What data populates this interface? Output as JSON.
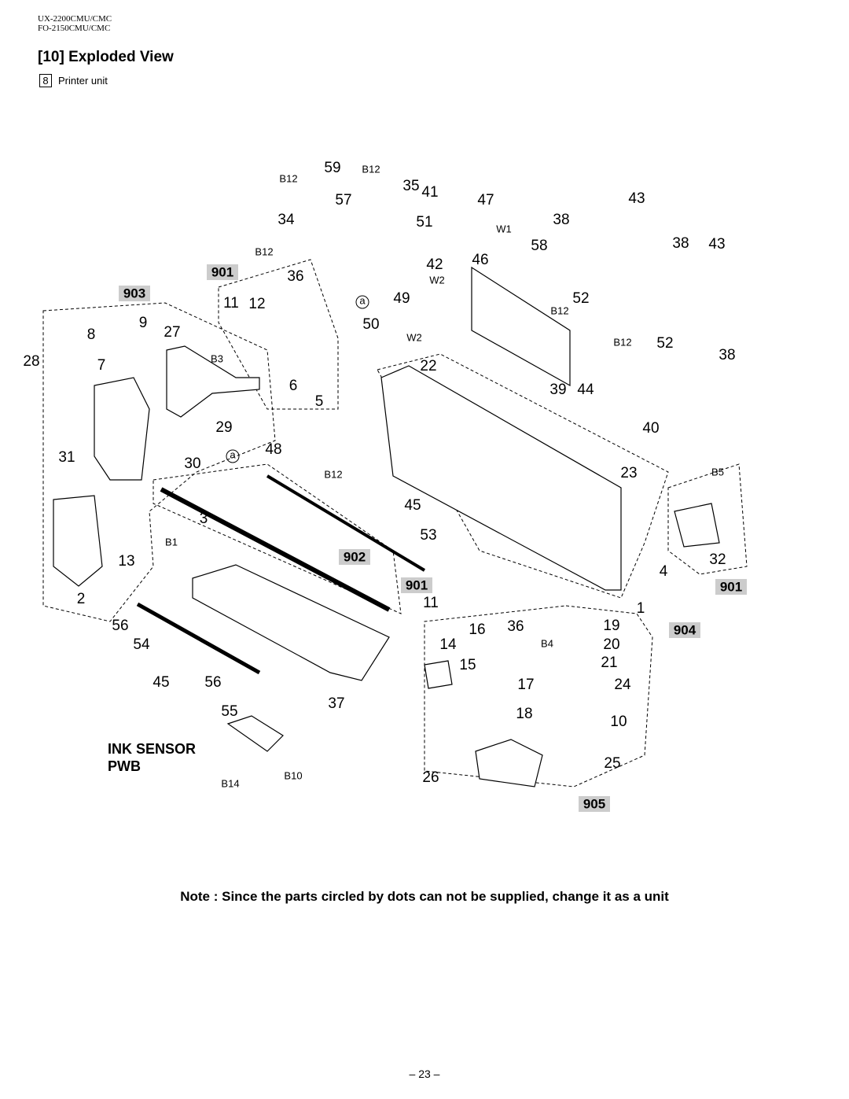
{
  "header": {
    "model_lines": [
      "UX-2200CMU/CMC",
      "FO-2150CMU/CMC"
    ]
  },
  "title": "[10] Exploded View",
  "subtitle": {
    "number": "8",
    "text": "Printer unit"
  },
  "diagram": {
    "part_labels": [
      "59",
      "35",
      "41",
      "47",
      "43",
      "57",
      "34",
      "51",
      "38",
      "58",
      "38",
      "43",
      "42",
      "46",
      "36",
      "49",
      "52",
      "11",
      "12",
      "50",
      "52",
      "9",
      "27",
      "8",
      "38",
      "28",
      "7",
      "22",
      "39",
      "44",
      "6",
      "5",
      "29",
      "40",
      "48",
      "31",
      "30",
      "23",
      "45",
      "3",
      "53",
      "13",
      "4",
      "32",
      "2",
      "11",
      "1",
      "56",
      "16",
      "36",
      "19",
      "54",
      "14",
      "20",
      "15",
      "21",
      "45",
      "56",
      "17",
      "24",
      "37",
      "55",
      "18",
      "10",
      "25",
      "26"
    ],
    "fastener_labels": [
      "B12",
      "B12",
      "W1",
      "B12",
      "W2",
      "B12",
      "W2",
      "B12",
      "B3",
      "B12",
      "B5",
      "B1",
      "B4",
      "B14",
      "B10"
    ],
    "unit_labels": [
      "901",
      "903",
      "902",
      "901",
      "901",
      "904",
      "905"
    ],
    "ref_marks": [
      "a",
      "a"
    ],
    "ink_sensor": [
      "INK SENSOR",
      "PWB"
    ]
  },
  "note": "Note : Since the parts circled by dots can not be supplied, change it as a unit",
  "page_number": "– 23 –"
}
